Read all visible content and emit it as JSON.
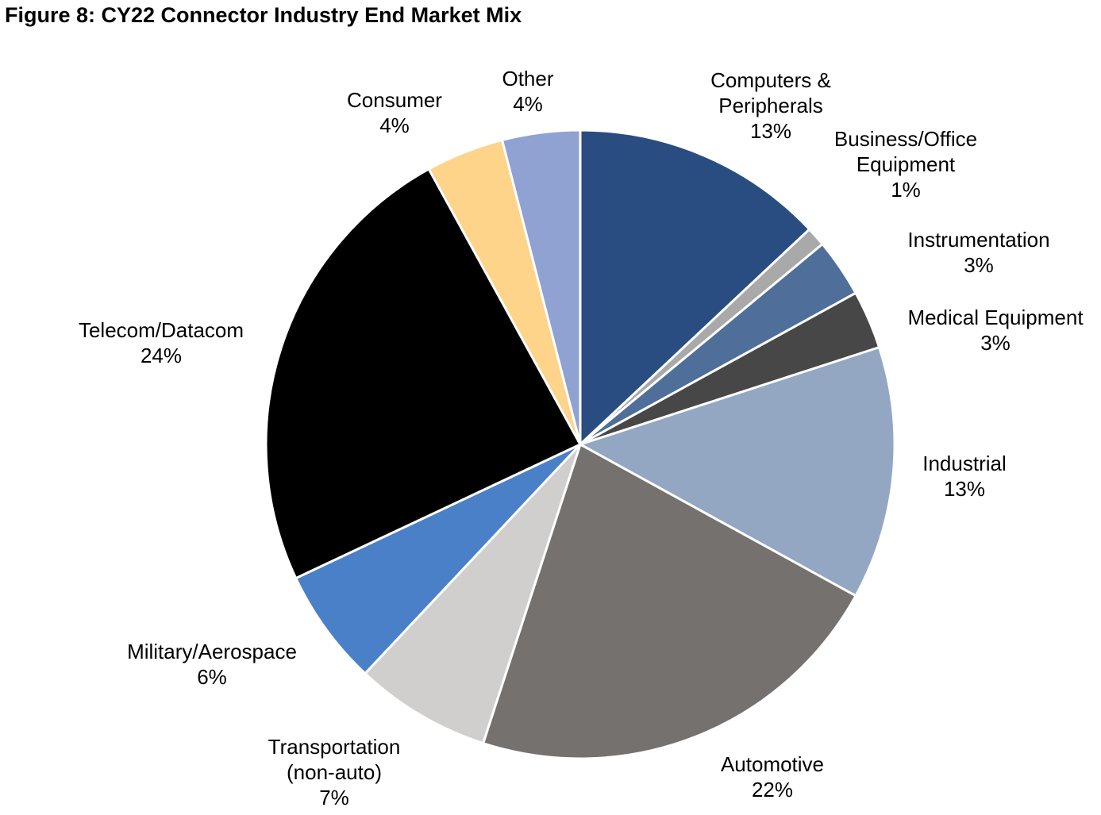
{
  "title": "Figure 8: CY22 Connector Industry End Market Mix",
  "chart_data": {
    "type": "pie",
    "title": "Figure 8: CY22 Connector Industry End Market Mix",
    "start": "12 o'clock, clockwise",
    "slices": [
      {
        "label": "Computers & Peripherals",
        "label_lines": [
          "Computers &",
          "Peripherals"
        ],
        "value": 13,
        "value_label": "13%",
        "color": "#294d80"
      },
      {
        "label": "Business/Office Equipment",
        "label_lines": [
          "Business/Office",
          "Equipment"
        ],
        "value": 1,
        "value_label": "1%",
        "color": "#a9a9a9"
      },
      {
        "label": "Instrumentation",
        "label_lines": [
          "Instrumentation"
        ],
        "value": 3,
        "value_label": "3%",
        "color": "#506e9a"
      },
      {
        "label": "Medical Equipment",
        "label_lines": [
          "Medical Equipment"
        ],
        "value": 3,
        "value_label": "3%",
        "color": "#474747"
      },
      {
        "label": "Industrial",
        "label_lines": [
          "Industrial"
        ],
        "value": 13,
        "value_label": "13%",
        "color": "#93a7c2"
      },
      {
        "label": "Automotive",
        "label_lines": [
          "Automotive"
        ],
        "value": 22,
        "value_label": "22%",
        "color": "#75716f"
      },
      {
        "label": "Transportation (non-auto)",
        "label_lines": [
          "Transportation",
          "(non-auto)"
        ],
        "value": 7,
        "value_label": "7%",
        "color": "#d0cfcd"
      },
      {
        "label": "Military/Aerospace",
        "label_lines": [
          "Military/Aerospace"
        ],
        "value": 6,
        "value_label": "6%",
        "color": "#4a80c8"
      },
      {
        "label": "Telecom/Datacom",
        "label_lines": [
          "Telecom/Datacom"
        ],
        "value": 24,
        "value_label": "24%",
        "color": "#000000"
      },
      {
        "label": "Consumer",
        "label_lines": [
          "Consumer"
        ],
        "value": 4,
        "value_label": "4%",
        "color": "#fed38a"
      },
      {
        "label": "Other",
        "label_lines": [
          "Other"
        ],
        "value": 4,
        "value_label": "4%",
        "color": "#90a2d2"
      }
    ]
  }
}
